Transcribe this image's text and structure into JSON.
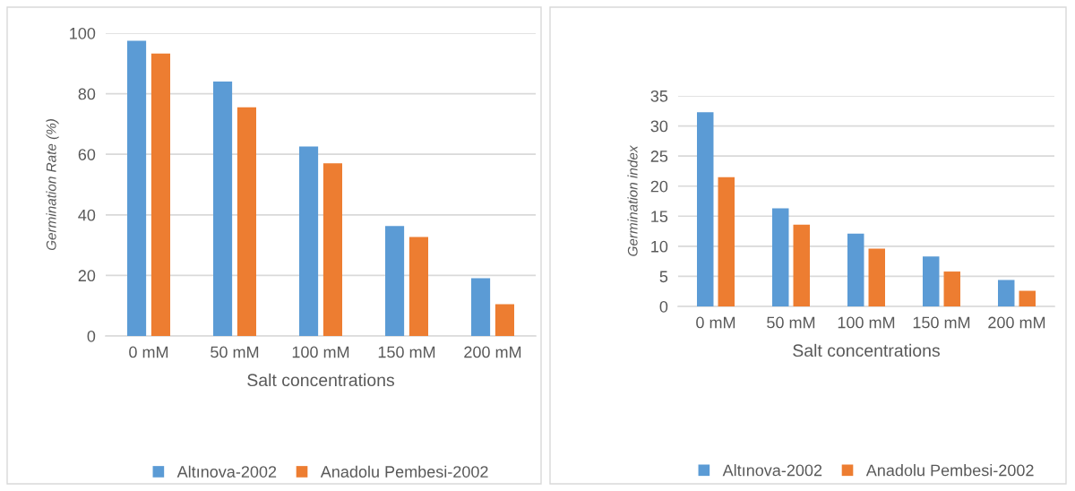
{
  "chart_data": [
    {
      "type": "bar",
      "categories": [
        "0 mM",
        "50 mM",
        "100 mM",
        "150 mM",
        "200 mM"
      ],
      "xlabel": "Salt concentrations",
      "ylabel": "Germination Rate (%)",
      "ylim": [
        0,
        100
      ],
      "yticks": [
        0,
        20,
        40,
        60,
        80,
        100
      ],
      "grid": "y",
      "legend": "bottom",
      "series": [
        {
          "name": "Altınova-2002",
          "color": "#5b9bd5",
          "values": [
            97.5,
            84.0,
            62.6,
            36.3,
            19.1
          ]
        },
        {
          "name": "Anadolu Pembesi-2002",
          "color": "#ed7d31",
          "values": [
            93.3,
            75.5,
            57.0,
            32.7,
            10.5
          ]
        }
      ]
    },
    {
      "type": "bar",
      "categories": [
        "0 mM",
        "50 mM",
        "100 mM",
        "150 mM",
        "200 mM"
      ],
      "xlabel": "Salt concentrations",
      "ylabel": "Germination index",
      "ylim": [
        0,
        35
      ],
      "yticks": [
        0,
        5,
        10,
        15,
        20,
        25,
        30,
        35
      ],
      "grid": "y",
      "legend": "bottom",
      "series": [
        {
          "name": "Altınova-2002",
          "color": "#5b9bd5",
          "values": [
            32.3,
            16.3,
            12.1,
            8.3,
            4.4
          ]
        },
        {
          "name": "Anadolu Pembesi-2002",
          "color": "#ed7d31",
          "values": [
            21.5,
            13.6,
            9.6,
            5.8,
            2.6
          ]
        }
      ]
    }
  ]
}
